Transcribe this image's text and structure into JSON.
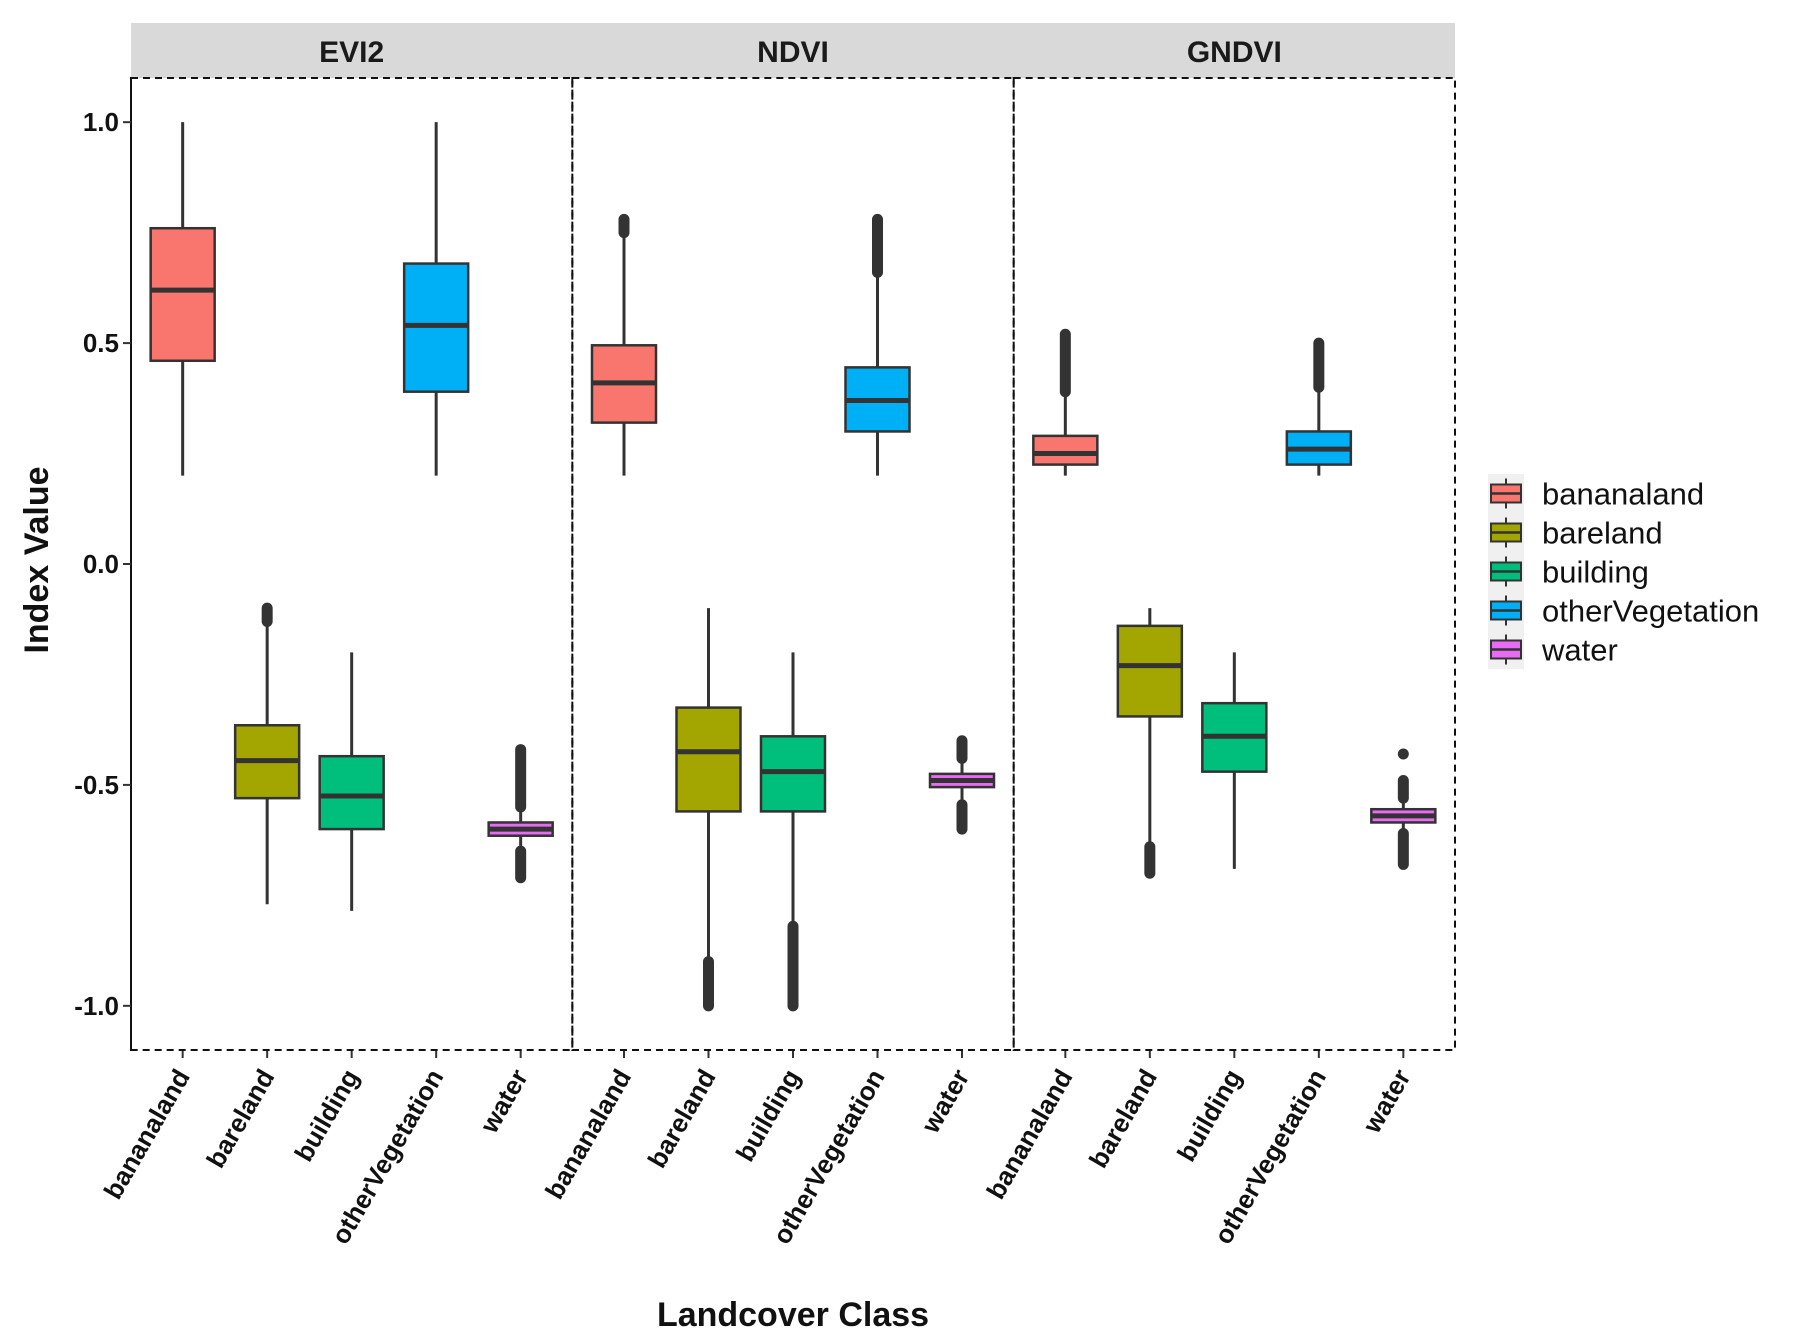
{
  "chart_data": {
    "type": "boxplot",
    "xlabel": "Landcover Class",
    "ylabel": "Index Value",
    "ylim": [
      -1.1,
      1.1
    ],
    "y_ticks": [
      1.0,
      0.5,
      0.0,
      -0.5,
      -1.0
    ],
    "y_tick_labels": [
      "1.0",
      "0.5",
      "0.0",
      "-0.5",
      "-1.0"
    ],
    "categories": [
      "bananaland",
      "bareland",
      "building",
      "otherVegetation",
      "water"
    ],
    "colors": {
      "bananaland": "#F8766D",
      "bareland": "#A3A500",
      "building": "#00BF7D",
      "otherVegetation": "#00B0F6",
      "water": "#E76BF3"
    },
    "legend": {
      "placement": "right",
      "entries": [
        "bananaland",
        "bareland",
        "building",
        "otherVegetation",
        "water"
      ]
    },
    "panels": [
      {
        "title": "EVI2",
        "boxes": [
          {
            "category": "bananaland",
            "min": 0.2,
            "q1": 0.46,
            "median": 0.62,
            "q3": 0.76,
            "max": 1.0,
            "outliers": []
          },
          {
            "category": "bareland",
            "min": -0.77,
            "q1": -0.53,
            "median": -0.445,
            "q3": -0.365,
            "max": -0.13,
            "outliers": [
              [
                -0.13,
                -0.1
              ]
            ]
          },
          {
            "category": "building",
            "min": -0.785,
            "q1": -0.6,
            "median": -0.525,
            "q3": -0.435,
            "max": -0.2,
            "outliers": []
          },
          {
            "category": "otherVegetation",
            "min": 0.2,
            "q1": 0.39,
            "median": 0.54,
            "q3": 0.68,
            "max": 1.0,
            "outliers": []
          },
          {
            "category": "water",
            "min": -0.65,
            "q1": -0.615,
            "median": -0.6,
            "q3": -0.585,
            "max": -0.55,
            "outliers": [
              [
                -0.55,
                -0.42
              ],
              [
                -0.71,
                -0.65
              ]
            ]
          }
        ]
      },
      {
        "title": "NDVI",
        "boxes": [
          {
            "category": "bananaland",
            "min": 0.2,
            "q1": 0.32,
            "median": 0.41,
            "q3": 0.495,
            "max": 0.75,
            "outliers": [
              [
                0.75,
                0.78
              ]
            ]
          },
          {
            "category": "bareland",
            "min": -0.9,
            "q1": -0.56,
            "median": -0.425,
            "q3": -0.325,
            "max": -0.1,
            "outliers": [
              [
                -1.0,
                -0.9
              ]
            ]
          },
          {
            "category": "building",
            "min": -0.82,
            "q1": -0.56,
            "median": -0.47,
            "q3": -0.39,
            "max": -0.2,
            "outliers": [
              [
                -1.0,
                -0.82
              ]
            ]
          },
          {
            "category": "otherVegetation",
            "min": 0.2,
            "q1": 0.3,
            "median": 0.37,
            "q3": 0.445,
            "max": 0.66,
            "outliers": [
              [
                0.66,
                0.78
              ]
            ]
          },
          {
            "category": "water",
            "min": -0.545,
            "q1": -0.505,
            "median": -0.49,
            "q3": -0.475,
            "max": -0.44,
            "outliers": [
              [
                -0.44,
                -0.4
              ],
              [
                -0.6,
                -0.545
              ]
            ]
          }
        ]
      },
      {
        "title": "GNDVI",
        "boxes": [
          {
            "category": "bananaland",
            "min": 0.2,
            "q1": 0.225,
            "median": 0.25,
            "q3": 0.29,
            "max": 0.39,
            "outliers": [
              [
                0.39,
                0.52
              ]
            ]
          },
          {
            "category": "bareland",
            "min": -0.64,
            "q1": -0.345,
            "median": -0.23,
            "q3": -0.14,
            "max": -0.1,
            "outliers": [
              [
                -0.7,
                -0.64
              ]
            ]
          },
          {
            "category": "building",
            "min": -0.69,
            "q1": -0.47,
            "median": -0.39,
            "q3": -0.315,
            "max": -0.2,
            "outliers": []
          },
          {
            "category": "otherVegetation",
            "min": 0.2,
            "q1": 0.225,
            "median": 0.26,
            "q3": 0.3,
            "max": 0.4,
            "outliers": [
              [
                0.4,
                0.5
              ]
            ]
          },
          {
            "category": "water",
            "min": -0.61,
            "q1": -0.585,
            "median": -0.57,
            "q3": -0.555,
            "max": -0.53,
            "outliers": [
              [
                -0.53,
                -0.49
              ],
              [
                -0.68,
                -0.61
              ],
              [
                -0.43,
                -0.43
              ]
            ]
          }
        ]
      }
    ]
  }
}
